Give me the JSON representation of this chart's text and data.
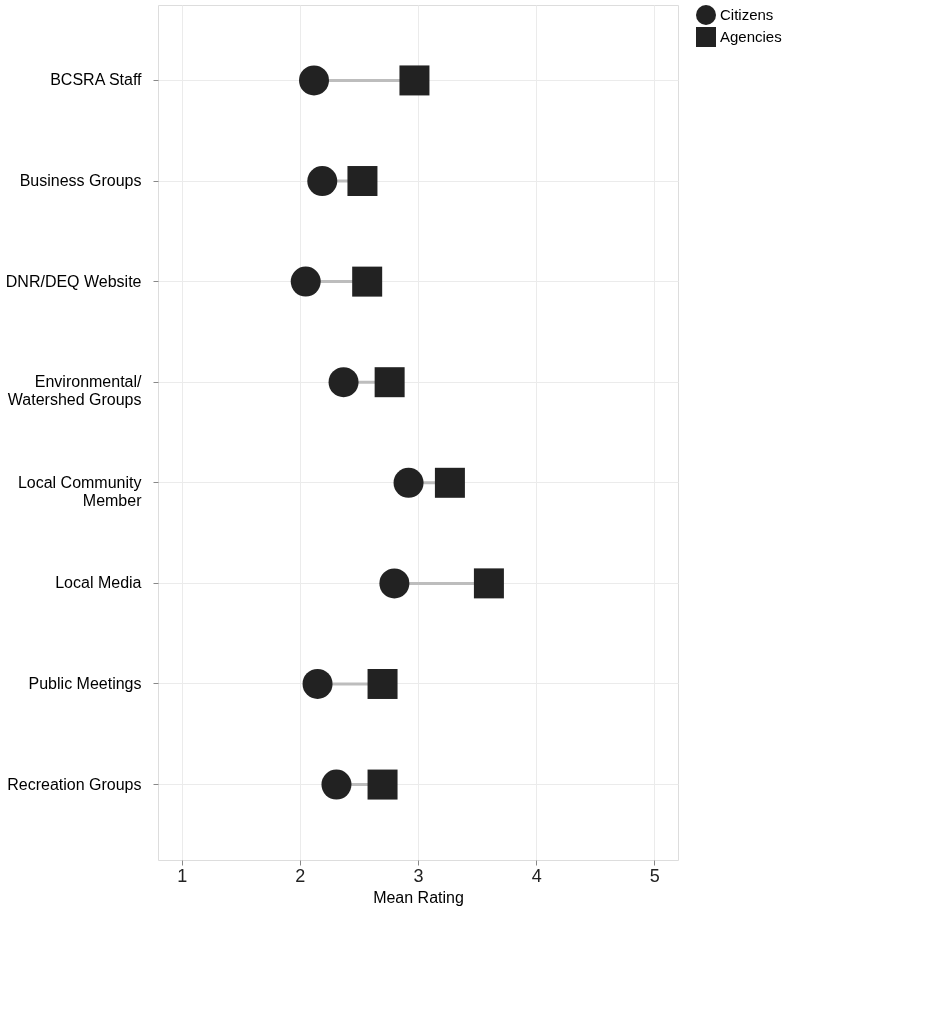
{
  "chart_data": {
    "type": "scatter",
    "xlabel": "Mean Rating",
    "orientation": "horizontal",
    "categories": [
      "BCSRA Staff",
      "Business Groups",
      "DNR/DEQ Website",
      "Environmental/\nWatershed Groups",
      "Local Community\nMember",
      "Local Media",
      "Public Meetings",
      "Recreation Groups"
    ],
    "series": [
      {
        "name": "Citizens",
        "color": "#222222",
        "marker": "circle",
        "values": [
          2.12,
          2.19,
          2.05,
          2.37,
          2.92,
          2.8,
          2.15,
          2.31
        ]
      },
      {
        "name": "Agencies",
        "color": "#222222",
        "marker": "square",
        "values": [
          2.97,
          2.53,
          2.57,
          2.76,
          3.27,
          3.6,
          2.7,
          2.7
        ]
      }
    ],
    "xlim": [
      0.8,
      5.2
    ],
    "xticks": [
      1,
      2,
      3,
      4,
      5
    ],
    "grid": true,
    "legend": "top right"
  }
}
